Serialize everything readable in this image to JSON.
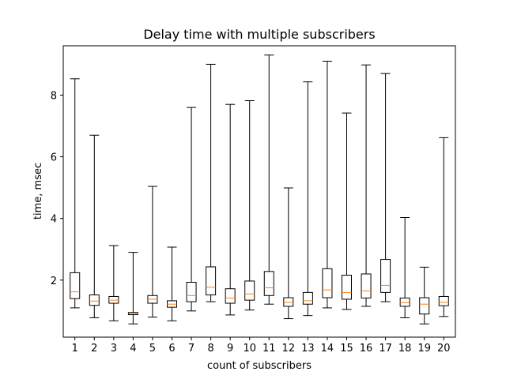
{
  "chart_data": {
    "type": "box",
    "title": "Delay time with multiple subscribers",
    "xlabel": "count of subscribers",
    "ylabel": "time, msec",
    "categories": [
      "1",
      "2",
      "3",
      "4",
      "5",
      "6",
      "7",
      "8",
      "9",
      "10",
      "11",
      "12",
      "13",
      "14",
      "15",
      "16",
      "17",
      "18",
      "19",
      "20"
    ],
    "yticks": [
      "2",
      "4",
      "6",
      "8"
    ],
    "ylim": [
      0.15,
      9.6
    ],
    "grid": false,
    "median_color": "#ff7f0e",
    "box_color": "#000000",
    "boxes": [
      {
        "whisker_low": 1.1,
        "q1": 1.4,
        "median": 1.62,
        "q3": 2.24,
        "whisker_high": 8.53
      },
      {
        "whisker_low": 0.78,
        "q1": 1.18,
        "median": 1.32,
        "q3": 1.52,
        "whisker_high": 6.7
      },
      {
        "whisker_low": 0.68,
        "q1": 1.25,
        "median": 1.35,
        "q3": 1.47,
        "whisker_high": 3.12
      },
      {
        "whisker_low": 0.58,
        "q1": 0.88,
        "median": 0.92,
        "q3": 0.95,
        "whisker_high": 2.9
      },
      {
        "whisker_low": 0.8,
        "q1": 1.25,
        "median": 1.38,
        "q3": 1.5,
        "whisker_high": 5.04
      },
      {
        "whisker_low": 0.68,
        "q1": 1.12,
        "median": 1.22,
        "q3": 1.33,
        "whisker_high": 3.07
      },
      {
        "whisker_low": 1.0,
        "q1": 1.3,
        "median": 1.5,
        "q3": 1.93,
        "whisker_high": 7.6
      },
      {
        "whisker_low": 1.3,
        "q1": 1.52,
        "median": 1.77,
        "q3": 2.43,
        "whisker_high": 9.0
      },
      {
        "whisker_low": 0.87,
        "q1": 1.25,
        "median": 1.42,
        "q3": 1.72,
        "whisker_high": 7.7
      },
      {
        "whisker_low": 1.03,
        "q1": 1.35,
        "median": 1.55,
        "q3": 1.97,
        "whisker_high": 7.82
      },
      {
        "whisker_low": 1.22,
        "q1": 1.5,
        "median": 1.75,
        "q3": 2.28,
        "whisker_high": 9.3
      },
      {
        "whisker_low": 0.75,
        "q1": 1.15,
        "median": 1.28,
        "q3": 1.43,
        "whisker_high": 4.99
      },
      {
        "whisker_low": 0.85,
        "q1": 1.22,
        "median": 1.33,
        "q3": 1.6,
        "whisker_high": 8.43
      },
      {
        "whisker_low": 1.1,
        "q1": 1.43,
        "median": 1.68,
        "q3": 2.37,
        "whisker_high": 9.1
      },
      {
        "whisker_low": 1.05,
        "q1": 1.38,
        "median": 1.6,
        "q3": 2.16,
        "whisker_high": 7.42
      },
      {
        "whisker_low": 1.15,
        "q1": 1.42,
        "median": 1.65,
        "q3": 2.2,
        "whisker_high": 8.98
      },
      {
        "whisker_low": 1.3,
        "q1": 1.6,
        "median": 1.83,
        "q3": 2.67,
        "whisker_high": 8.7
      },
      {
        "whisker_low": 0.78,
        "q1": 1.15,
        "median": 1.27,
        "q3": 1.42,
        "whisker_high": 4.03
      },
      {
        "whisker_low": 0.58,
        "q1": 0.9,
        "median": 1.22,
        "q3": 1.43,
        "whisker_high": 2.42
      },
      {
        "whisker_low": 0.82,
        "q1": 1.17,
        "median": 1.28,
        "q3": 1.47,
        "whisker_high": 6.62
      }
    ]
  }
}
